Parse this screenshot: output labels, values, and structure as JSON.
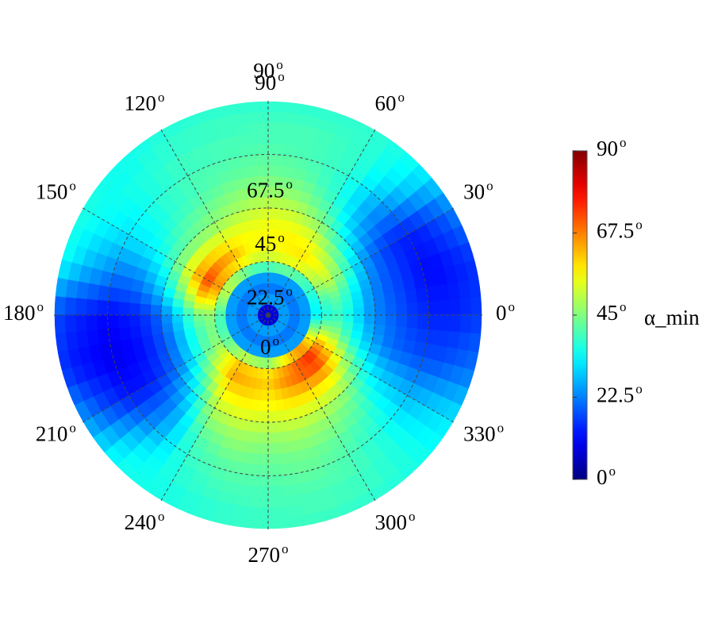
{
  "chart_data": {
    "type": "heatmap",
    "subtype": "polar",
    "angular_tick_labels": [
      {
        "value": 0,
        "label": "0",
        "sup": "o"
      },
      {
        "value": 30,
        "label": "30",
        "sup": "o"
      },
      {
        "value": 60,
        "label": "60",
        "sup": "o"
      },
      {
        "value": 90,
        "label": "90",
        "sup": "o"
      },
      {
        "value": 120,
        "label": "120",
        "sup": "o"
      },
      {
        "value": 150,
        "label": "150",
        "sup": "o"
      },
      {
        "value": 180,
        "label": "180",
        "sup": "o"
      },
      {
        "value": 210,
        "label": "210",
        "sup": "o"
      },
      {
        "value": 240,
        "label": "240",
        "sup": "o"
      },
      {
        "value": 270,
        "label": "270",
        "sup": "o"
      },
      {
        "value": 300,
        "label": "300",
        "sup": "o"
      },
      {
        "value": 330,
        "label": "330",
        "sup": "o"
      }
    ],
    "radial_tick_labels": [
      {
        "value": 0,
        "label": "0",
        "sup": "o"
      },
      {
        "value": 22.5,
        "label": "22.5",
        "sup": "o"
      },
      {
        "value": 45,
        "label": "45",
        "sup": "o"
      },
      {
        "value": 67.5,
        "label": "67.5",
        "sup": "o"
      },
      {
        "value": 90,
        "label": "90",
        "sup": "o"
      }
    ],
    "radial_range": [
      0,
      90
    ],
    "angular_range": [
      0,
      360
    ],
    "grid": true,
    "colorbar": {
      "colormap": "jet",
      "label": "α_min",
      "range": [
        0,
        90
      ],
      "ticks": [
        {
          "value": 0,
          "label": "0",
          "sup": "o"
        },
        {
          "value": 22.5,
          "label": "22.5",
          "sup": "o"
        },
        {
          "value": 45,
          "label": "45",
          "sup": "o"
        },
        {
          "value": 67.5,
          "label": "67.5",
          "sup": "o"
        },
        {
          "value": 90,
          "label": "90",
          "sup": "o"
        }
      ]
    },
    "radial_profiles": [
      {
        "angle": 0,
        "values": [
          8,
          25,
          22,
          25,
          33,
          36,
          38,
          35,
          30,
          25,
          22,
          20,
          18,
          16,
          15,
          14,
          14,
          14,
          15,
          16
        ]
      },
      {
        "angle": 15,
        "values": [
          8,
          25,
          22,
          25,
          35,
          40,
          42,
          38,
          32,
          26,
          22,
          19,
          17,
          15,
          13,
          12,
          12,
          13,
          14,
          15
        ]
      },
      {
        "angle": 30,
        "values": [
          8,
          25,
          22,
          25,
          38,
          48,
          50,
          45,
          38,
          30,
          24,
          20,
          17,
          15,
          14,
          14,
          15,
          17,
          19,
          22
        ]
      },
      {
        "angle": 45,
        "values": [
          8,
          25,
          22,
          25,
          40,
          52,
          55,
          50,
          44,
          38,
          32,
          28,
          26,
          25,
          26,
          28,
          30,
          32,
          33,
          34
        ]
      },
      {
        "angle": 60,
        "values": [
          8,
          25,
          22,
          25,
          42,
          55,
          58,
          56,
          52,
          47,
          43,
          40,
          38,
          37,
          37,
          38,
          38,
          38,
          38,
          38
        ]
      },
      {
        "angle": 75,
        "values": [
          8,
          25,
          22,
          25,
          42,
          54,
          57,
          57,
          55,
          52,
          49,
          46,
          44,
          42,
          41,
          40,
          40,
          40,
          39,
          38
        ]
      },
      {
        "angle": 90,
        "values": [
          8,
          25,
          22,
          25,
          40,
          52,
          55,
          56,
          55,
          53,
          50,
          47,
          45,
          43,
          42,
          41,
          40,
          40,
          39,
          38
        ]
      },
      {
        "angle": 105,
        "values": [
          8,
          25,
          22,
          25,
          40,
          53,
          56,
          56,
          54,
          51,
          48,
          46,
          44,
          42,
          41,
          40,
          40,
          39,
          39,
          38
        ]
      },
      {
        "angle": 120,
        "values": [
          8,
          25,
          22,
          25,
          44,
          58,
          62,
          58,
          53,
          48,
          45,
          43,
          41,
          40,
          40,
          39,
          39,
          38,
          38,
          37
        ]
      },
      {
        "angle": 135,
        "values": [
          8,
          25,
          22,
          25,
          48,
          62,
          66,
          60,
          53,
          46,
          42,
          40,
          38,
          37,
          37,
          36,
          36,
          36,
          35,
          35
        ]
      },
      {
        "angle": 150,
        "values": [
          8,
          25,
          22,
          25,
          50,
          66,
          72,
          64,
          54,
          45,
          39,
          35,
          33,
          32,
          32,
          32,
          33,
          34,
          35,
          36
        ]
      },
      {
        "angle": 165,
        "values": [
          8,
          25,
          22,
          25,
          46,
          58,
          60,
          52,
          44,
          36,
          30,
          26,
          23,
          22,
          22,
          24,
          26,
          28,
          31,
          34
        ]
      },
      {
        "angle": 180,
        "values": [
          8,
          25,
          22,
          25,
          40,
          46,
          44,
          38,
          30,
          24,
          19,
          16,
          14,
          13,
          12,
          12,
          13,
          14,
          15,
          17
        ]
      },
      {
        "angle": 195,
        "values": [
          8,
          25,
          22,
          25,
          40,
          44,
          40,
          34,
          27,
          21,
          17,
          14,
          12,
          11,
          10,
          10,
          11,
          12,
          13,
          15
        ]
      },
      {
        "angle": 210,
        "values": [
          8,
          25,
          22,
          25,
          42,
          46,
          42,
          36,
          29,
          23,
          19,
          16,
          14,
          13,
          13,
          14,
          16,
          18,
          21,
          24
        ]
      },
      {
        "angle": 225,
        "values": [
          8,
          25,
          22,
          25,
          46,
          54,
          52,
          46,
          40,
          34,
          29,
          26,
          24,
          24,
          25,
          27,
          30,
          32,
          34,
          35
        ]
      },
      {
        "angle": 240,
        "values": [
          8,
          25,
          22,
          25,
          50,
          62,
          64,
          60,
          56,
          52,
          48,
          45,
          42,
          40,
          39,
          38,
          37,
          37,
          36,
          36
        ]
      },
      {
        "angle": 255,
        "values": [
          8,
          25,
          22,
          25,
          48,
          60,
          62,
          60,
          57,
          54,
          51,
          48,
          46,
          44,
          42,
          41,
          40,
          39,
          38,
          38
        ]
      },
      {
        "angle": 270,
        "values": [
          8,
          25,
          22,
          25,
          46,
          58,
          60,
          58,
          56,
          53,
          50,
          47,
          45,
          43,
          42,
          41,
          40,
          40,
          39,
          39
        ]
      },
      {
        "angle": 285,
        "values": [
          8,
          25,
          22,
          25,
          54,
          64,
          66,
          62,
          58,
          54,
          51,
          48,
          46,
          44,
          43,
          42,
          41,
          40,
          40,
          39
        ]
      },
      {
        "angle": 300,
        "values": [
          8,
          25,
          22,
          25,
          62,
          70,
          70,
          64,
          58,
          53,
          49,
          46,
          44,
          42,
          41,
          40,
          40,
          39,
          39,
          38
        ]
      },
      {
        "angle": 315,
        "values": [
          8,
          25,
          22,
          25,
          66,
          75,
          72,
          64,
          56,
          50,
          45,
          42,
          40,
          38,
          37,
          36,
          36,
          36,
          36,
          36
        ]
      },
      {
        "angle": 330,
        "values": [
          8,
          25,
          22,
          25,
          58,
          64,
          60,
          53,
          46,
          40,
          35,
          32,
          30,
          29,
          28,
          28,
          29,
          30,
          31,
          32
        ]
      },
      {
        "angle": 345,
        "values": [
          8,
          25,
          22,
          25,
          44,
          48,
          46,
          40,
          34,
          29,
          25,
          22,
          20,
          19,
          18,
          18,
          18,
          19,
          20,
          21
        ]
      }
    ]
  }
}
